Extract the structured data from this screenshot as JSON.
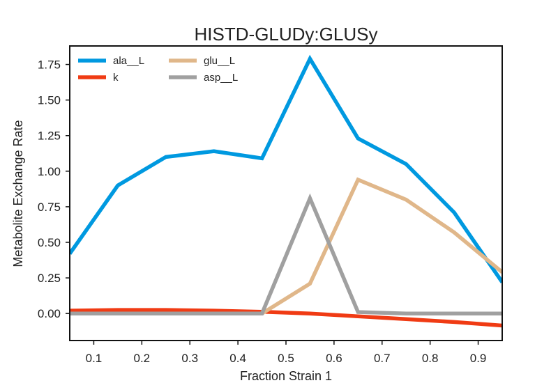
{
  "chart_data": {
    "type": "line",
    "title": "HISTD-GLUDy:GLUSy",
    "xlabel": "Fraction Strain 1",
    "ylabel": "Metabolite Exchange Rate",
    "xlim": [
      0.05,
      0.95
    ],
    "ylim": [
      -0.19,
      1.88
    ],
    "xticks": [
      0.1,
      0.2,
      0.3,
      0.4,
      0.5,
      0.6,
      0.7,
      0.8,
      0.9
    ],
    "xtick_labels": [
      "0.1",
      "0.2",
      "0.3",
      "0.4",
      "0.5",
      "0.6",
      "0.7",
      "0.8",
      "0.9"
    ],
    "yticks": [
      0.0,
      0.25,
      0.5,
      0.75,
      1.0,
      1.25,
      1.5,
      1.75
    ],
    "ytick_labels": [
      "0.00",
      "0.25",
      "0.50",
      "0.75",
      "1.00",
      "1.25",
      "1.50",
      "1.75"
    ],
    "x": [
      0.05,
      0.15,
      0.25,
      0.35,
      0.45,
      0.55,
      0.65,
      0.75,
      0.85,
      0.95
    ],
    "series": [
      {
        "name": "ala__L",
        "color": "#0099e0",
        "values": [
          0.42,
          0.9,
          1.1,
          1.14,
          1.09,
          1.79,
          1.23,
          1.05,
          0.71,
          0.22
        ]
      },
      {
        "name": "k",
        "color": "#f03b14",
        "values": [
          0.02,
          0.025,
          0.025,
          0.02,
          0.012,
          0.0,
          -0.02,
          -0.04,
          -0.06,
          -0.085
        ]
      },
      {
        "name": "glu__L",
        "color": "#e0b78a",
        "values": [
          0.0,
          0.0,
          0.0,
          0.0,
          0.0,
          0.21,
          0.94,
          0.8,
          0.57,
          0.29
        ]
      },
      {
        "name": "asp__L",
        "color": "#a0a0a0",
        "values": [
          0.0,
          0.0,
          0.0,
          0.0,
          0.0,
          0.81,
          0.01,
          0.0,
          0.0,
          0.0
        ]
      }
    ],
    "grid": false,
    "legend_position": "top-left",
    "legend_columns": 2
  }
}
